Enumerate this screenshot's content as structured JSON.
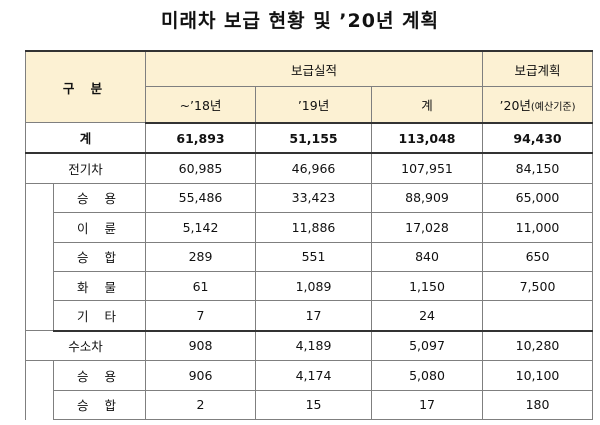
{
  "title": "미래차 보급 현황 및 ’20년 계획",
  "header": {
    "category": "구 분",
    "actual_group": "보급실적",
    "plan_group": "보급계획",
    "col_to18": "~’18년",
    "col_19": "’19년",
    "col_total": "계",
    "col_20_main": "’20년",
    "col_20_note": "(예산기준)"
  },
  "rows": {
    "total": {
      "label": "계",
      "v1": "61,893",
      "v2": "51,155",
      "v3": "113,048",
      "v4": "94,430"
    },
    "ev": {
      "label": "전기차",
      "v1": "60,985",
      "v2": "46,966",
      "v3": "107,951",
      "v4": "84,150"
    },
    "ev_car": {
      "label": "승 용",
      "v1": "55,486",
      "v2": "33,423",
      "v3": "88,909",
      "v4": "65,000"
    },
    "ev_two": {
      "label": "이 륜",
      "v1": "5,142",
      "v2": "11,886",
      "v3": "17,028",
      "v4": "11,000"
    },
    "ev_van": {
      "label": "승 합",
      "v1": "289",
      "v2": "551",
      "v3": "840",
      "v4": "650"
    },
    "ev_truck": {
      "label": "화 물",
      "v1": "61",
      "v2": "1,089",
      "v3": "1,150",
      "v4": "7,500"
    },
    "ev_etc": {
      "label": "기 타",
      "v1": "7",
      "v2": "17",
      "v3": "24",
      "v4": ""
    },
    "h2": {
      "label": "수소차",
      "v1": "908",
      "v2": "4,189",
      "v3": "5,097",
      "v4": "10,280"
    },
    "h2_car": {
      "label": "승 용",
      "v1": "906",
      "v2": "4,174",
      "v3": "5,080",
      "v4": "10,100"
    },
    "h2_van": {
      "label": "승 합",
      "v1": "2",
      "v2": "15",
      "v3": "17",
      "v4": "180"
    }
  }
}
